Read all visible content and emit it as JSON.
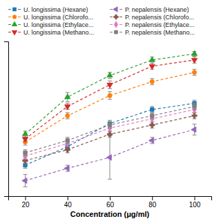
{
  "chart_data": {
    "type": "line",
    "xlabel": "Concentration (μg/ml)",
    "x": [
      20,
      40,
      60,
      80,
      100
    ],
    "series": [
      {
        "name": "U. longissima (Hexane)",
        "values": [
          20,
          32,
          47,
          56,
          60
        ],
        "yerr": [
          2.0,
          2.0,
          2.0,
          2.0,
          2.0
        ],
        "marker": "square"
      },
      {
        "name": "U. longissima (Chlorofo...",
        "values": [
          35,
          52,
          65,
          74,
          80
        ],
        "yerr": [
          2.0,
          2.0,
          2.5,
          2.0,
          2.0
        ],
        "marker": "circle"
      },
      {
        "name": "U. longissima (Ethylace...",
        "values": [
          40,
          64,
          78,
          88,
          92
        ],
        "yerr": [
          2.0,
          3.0,
          2.0,
          2.0,
          1.5
        ],
        "marker": "triangle-up"
      },
      {
        "name": "U. longissima (Methano...",
        "values": [
          37,
          58,
          72,
          84,
          88
        ],
        "yerr": [
          2.0,
          2.0,
          2.5,
          2.0,
          2.0
        ],
        "marker": "triangle-down"
      },
      {
        "name": "P. nepalensis (Hexane)",
        "values": [
          10,
          18,
          25,
          36,
          43
        ],
        "yerr": [
          4.0,
          2.0,
          14.0,
          2.0,
          3.5
        ],
        "marker": "triangle-left"
      },
      {
        "name": "P. nepalensis (Chlorofo...",
        "values": [
          23,
          30,
          40,
          46,
          52
        ],
        "yerr": [
          2.0,
          2.0,
          2.0,
          2.0,
          2.0
        ],
        "marker": "plus"
      },
      {
        "name": "P. nepalensis (Ethylace...",
        "values": [
          26,
          34,
          44,
          50,
          56
        ],
        "yerr": [
          2.0,
          2.0,
          2.0,
          2.0,
          2.0
        ],
        "marker": "diamond"
      },
      {
        "name": "P. nepalensis (Methano...",
        "values": [
          28,
          36,
          46,
          52,
          58
        ],
        "yerr": [
          2.0,
          2.0,
          2.0,
          2.0,
          2.0
        ],
        "marker": "square"
      }
    ],
    "xlim": [
      12,
      108
    ],
    "ylim": [
      0,
      100
    ],
    "xticks": [
      20,
      40,
      60,
      80,
      100
    ],
    "line_style": "dashed",
    "legend": "top",
    "tick_labels": "x"
  }
}
